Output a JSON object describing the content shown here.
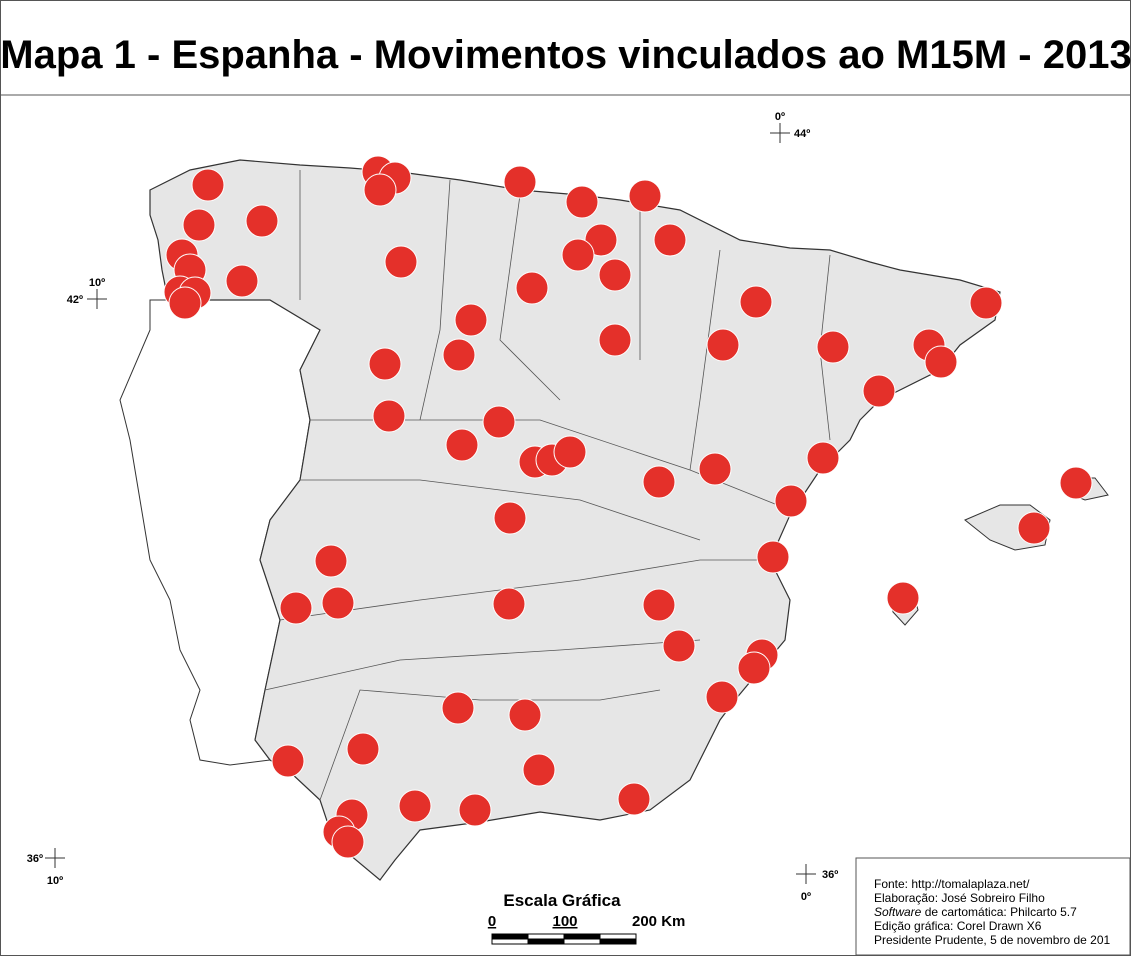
{
  "header": {
    "title": "Mapa 1 - Espanha - Movimentos vinculados ao M15M - 2013"
  },
  "coordinates": [
    {
      "lon": "0º",
      "lat": "44º"
    },
    {
      "lon": "10º",
      "lat": "42º"
    },
    {
      "lat": "36º",
      "lon": "10º"
    },
    {
      "lat": "36º",
      "lon": "0º"
    }
  ],
  "scale": {
    "title": "Escala Gráfica",
    "labels": [
      "0",
      "100",
      "200 Km"
    ]
  },
  "source": {
    "fonte": "Fonte: http://tomalaplaza.net/",
    "elaboracao": "Elaboração: José Sobreiro Filho",
    "software_label": "Software",
    "software_text": " de cartomática: Philcarto 5.7",
    "edicao": "Edição gráfica: Corel Drawn X6",
    "local": "Presidente Prudente, 5 de novembro de 201"
  }
}
